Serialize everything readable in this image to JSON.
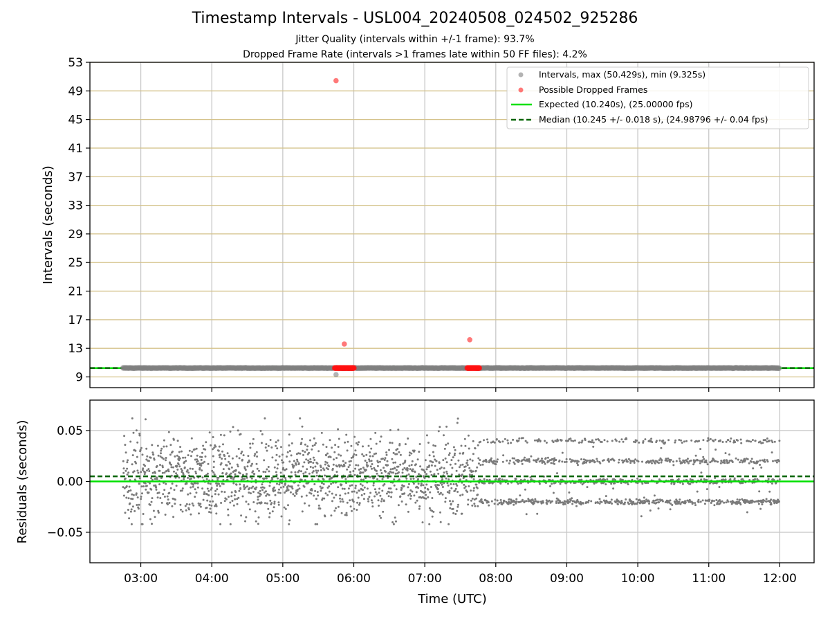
{
  "figure": {
    "title": "Timestamp Intervals - USL004_20240508_024502_925286",
    "subtitle_jitter": "Jitter Quality (intervals within +/-1 frame): 93.7%",
    "subtitle_dropped": "Dropped Frame Rate (intervals >1 frames late within 50 FF files): 4.2%"
  },
  "chart_data": [
    {
      "type": "scatter",
      "ylabel": "Intervals (seconds)",
      "ylim": [
        7.5,
        53
      ],
      "yticks": [
        9,
        13,
        17,
        21,
        25,
        29,
        33,
        37,
        41,
        45,
        49,
        53
      ],
      "xlim": [
        "02:17",
        "12:29"
      ],
      "grid": "vertical gray, horizontal tan",
      "legend_position": "upper right",
      "legend": [
        {
          "label": "Intervals, max (50.429s), min (9.325s)",
          "marker": "gray-dot"
        },
        {
          "label": "Possible Dropped Frames",
          "marker": "red-dot"
        },
        {
          "label": "Expected (10.240s), (25.00000 fps)",
          "line": "solid-green"
        },
        {
          "label": "Median (10.245 +/- 0.018 s), (24.98796 +/- 0.04 fps)",
          "line": "dashed-darkgreen"
        }
      ],
      "series": [
        {
          "name": "Intervals",
          "color": "#808080",
          "x_range": [
            "02:45",
            "12:00"
          ],
          "typical_value": 10.24,
          "outlier_min": {
            "x": "05:45",
            "y": 9.325
          }
        },
        {
          "name": "Possible Dropped Frames",
          "color": "#ff4040",
          "points": [
            {
              "x": "05:45",
              "y": 50.429
            },
            {
              "x": "05:52",
              "y": 13.6
            },
            {
              "x": "07:38",
              "y": 14.2
            }
          ],
          "clusters": [
            {
              "x_start": "05:44",
              "x_end": "06:00",
              "y": 10.24
            },
            {
              "x_start": "07:36",
              "x_end": "07:46",
              "y": 10.24
            }
          ]
        },
        {
          "name": "Expected",
          "y": 10.24,
          "color": "#00e000",
          "style": "solid"
        },
        {
          "name": "Median",
          "y": 10.245,
          "color": "#006400",
          "style": "dashed"
        }
      ]
    },
    {
      "type": "scatter",
      "ylabel": "Residuals (seconds)",
      "xlabel": "Time (UTC)",
      "ylim": [
        -0.08,
        0.08
      ],
      "yticks": [
        0.05,
        0.0,
        -0.05
      ],
      "ytick_labels": [
        "0.05",
        "0.00",
        "−0.05"
      ],
      "xticks": [
        "03:00",
        "04:00",
        "05:00",
        "06:00",
        "07:00",
        "08:00",
        "09:00",
        "10:00",
        "11:00",
        "12:00"
      ],
      "xlim": [
        "02:17",
        "12:29"
      ],
      "grid": "gray",
      "series": [
        {
          "name": "Residuals",
          "color": "#808080",
          "x_range": [
            "02:45",
            "12:00"
          ],
          "spread_early": [
            -0.047,
            0.057
          ],
          "levels_after_0745": [
            -0.02,
            0.0,
            0.02,
            0.04
          ]
        },
        {
          "name": "Expected",
          "y": 0.0,
          "color": "#00e000",
          "style": "solid"
        },
        {
          "name": "Median",
          "y": 0.005,
          "color": "#006400",
          "style": "dashed"
        }
      ]
    }
  ]
}
